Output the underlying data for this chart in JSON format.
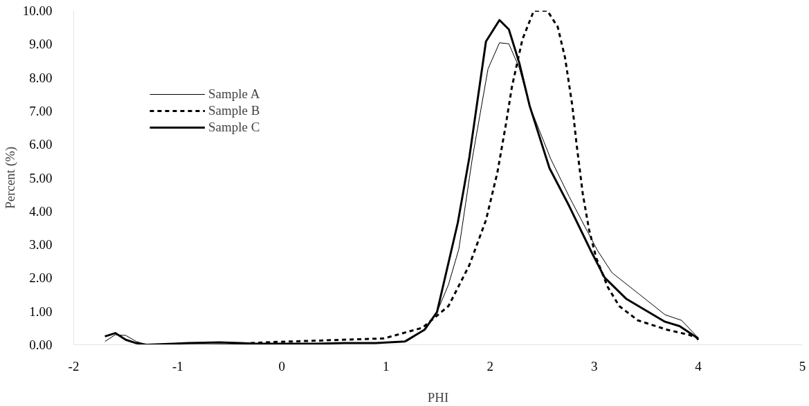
{
  "chart_data": {
    "type": "line",
    "xlabel": "PHI",
    "ylabel": "Percent (%)",
    "xlim": [
      -2,
      5
    ],
    "xticks": [
      -2,
      -1,
      0,
      1,
      2,
      3,
      4,
      5
    ],
    "ylim": [
      0,
      10
    ],
    "yticks": [
      {
        "value": 0,
        "label": "0.00"
      },
      {
        "value": 1,
        "label": "1.00"
      },
      {
        "value": 2,
        "label": "2.00"
      },
      {
        "value": 3,
        "label": "3.00"
      },
      {
        "value": 4,
        "label": "4.00"
      },
      {
        "value": 5,
        "label": "5.00"
      },
      {
        "value": 6,
        "label": "6.00"
      },
      {
        "value": 7,
        "label": "7.00"
      },
      {
        "value": 8,
        "label": "8.00"
      },
      {
        "value": 9,
        "label": "9.00"
      },
      {
        "value": 10,
        "label": "10.00"
      }
    ],
    "grid": false,
    "legend": "top left",
    "series": [
      {
        "name": "Sample A",
        "color": "#000000",
        "line_style": "solid",
        "x": [
          -1.7,
          -1.6,
          -1.5,
          -1.4,
          -1.3,
          0.3,
          0.6,
          0.9,
          1.2,
          1.35,
          1.49,
          1.6,
          1.7,
          1.83,
          1.98,
          2.09,
          2.18,
          2.28,
          2.38,
          2.58,
          2.76,
          3.03,
          3.17,
          3.43,
          3.68,
          3.84,
          4.0
        ],
        "values": [
          0.1,
          0.3,
          0.28,
          0.1,
          0.0,
          0.03,
          0.05,
          0.05,
          0.1,
          0.4,
          0.98,
          1.8,
          2.87,
          5.6,
          8.26,
          9.04,
          9.01,
          8.29,
          7.15,
          5.58,
          4.43,
          2.83,
          2.16,
          1.52,
          0.9,
          0.73,
          0.2
        ]
      },
      {
        "name": "Sample B",
        "color": "#000000",
        "line_style": "dashed",
        "x": [
          -0.3,
          -0.1,
          0.98,
          1.35,
          1.6,
          1.8,
          1.96,
          2.07,
          2.15,
          2.21,
          2.31,
          2.42,
          2.55,
          2.65,
          2.72,
          2.79,
          2.83,
          2.89,
          2.95,
          3.02,
          3.13,
          3.24,
          3.42,
          3.7,
          3.91,
          4.0
        ],
        "values": [
          0.05,
          0.08,
          0.19,
          0.51,
          1.16,
          2.38,
          3.73,
          5.16,
          6.57,
          7.73,
          9.14,
          10.0,
          10.0,
          9.51,
          8.59,
          7.15,
          6.02,
          4.52,
          3.45,
          2.59,
          1.73,
          1.16,
          0.73,
          0.45,
          0.3,
          0.2
        ]
      },
      {
        "name": "Sample C",
        "color": "#000000",
        "line_style": "solid",
        "x": [
          -1.7,
          -1.6,
          -1.5,
          -1.4,
          -1.3,
          -0.9,
          -0.6,
          -0.4,
          -0.25,
          0.3,
          0.6,
          0.9,
          1.18,
          1.37,
          1.49,
          1.69,
          1.8,
          1.96,
          2.09,
          2.18,
          2.28,
          2.38,
          2.57,
          2.76,
          2.97,
          3.1,
          3.31,
          3.68,
          3.82,
          3.98,
          4.0
        ],
        "values": [
          0.25,
          0.35,
          0.15,
          0.05,
          0.0,
          0.05,
          0.07,
          0.05,
          0.03,
          0.03,
          0.05,
          0.05,
          0.1,
          0.45,
          0.98,
          3.66,
          5.6,
          9.08,
          9.72,
          9.44,
          8.44,
          7.15,
          5.29,
          4.15,
          2.8,
          2.01,
          1.37,
          0.69,
          0.56,
          0.23,
          0.15
        ]
      }
    ]
  }
}
